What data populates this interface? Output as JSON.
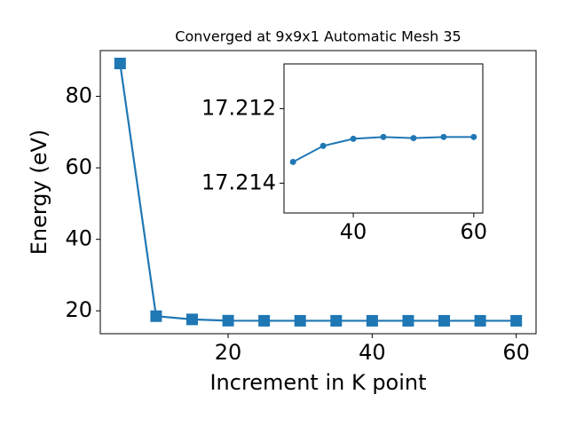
{
  "chart_data": [
    {
      "type": "line",
      "title": "Converged at 9x9x1 Automatic Mesh 35",
      "x_label": "Increment in K point",
      "y_label": "Energy (eV)",
      "x": [
        5,
        10,
        15,
        20,
        25,
        30,
        35,
        40,
        45,
        50,
        55,
        60
      ],
      "series": [
        {
          "color": "#1f77b4",
          "marker": "square",
          "values": [
            89.2,
            18.5,
            17.6,
            17.25,
            17.22,
            17.2134,
            17.213,
            17.2128,
            17.2128,
            17.2128,
            17.2128,
            17.2128
          ]
        }
      ],
      "xlim": [
        2.25,
        62.75
      ],
      "ylim": [
        13.6,
        92.8
      ],
      "xticks": [
        20,
        40,
        60
      ],
      "yticks": [
        20,
        40,
        60,
        80
      ]
    },
    {
      "type": "line",
      "x": [
        30,
        35,
        40,
        45,
        50,
        55,
        60
      ],
      "series": [
        {
          "color": "#1f77b4",
          "marker": "circle",
          "values": [
            17.21343,
            17.213,
            17.21281,
            17.21276,
            17.21279,
            17.21276,
            17.21276
          ]
        }
      ],
      "xlim": [
        28.5,
        61.5
      ],
      "ylim": [
        17.2148,
        17.2108
      ],
      "xticks": [
        40,
        60
      ],
      "yticks": [
        17.212,
        17.214
      ]
    }
  ]
}
